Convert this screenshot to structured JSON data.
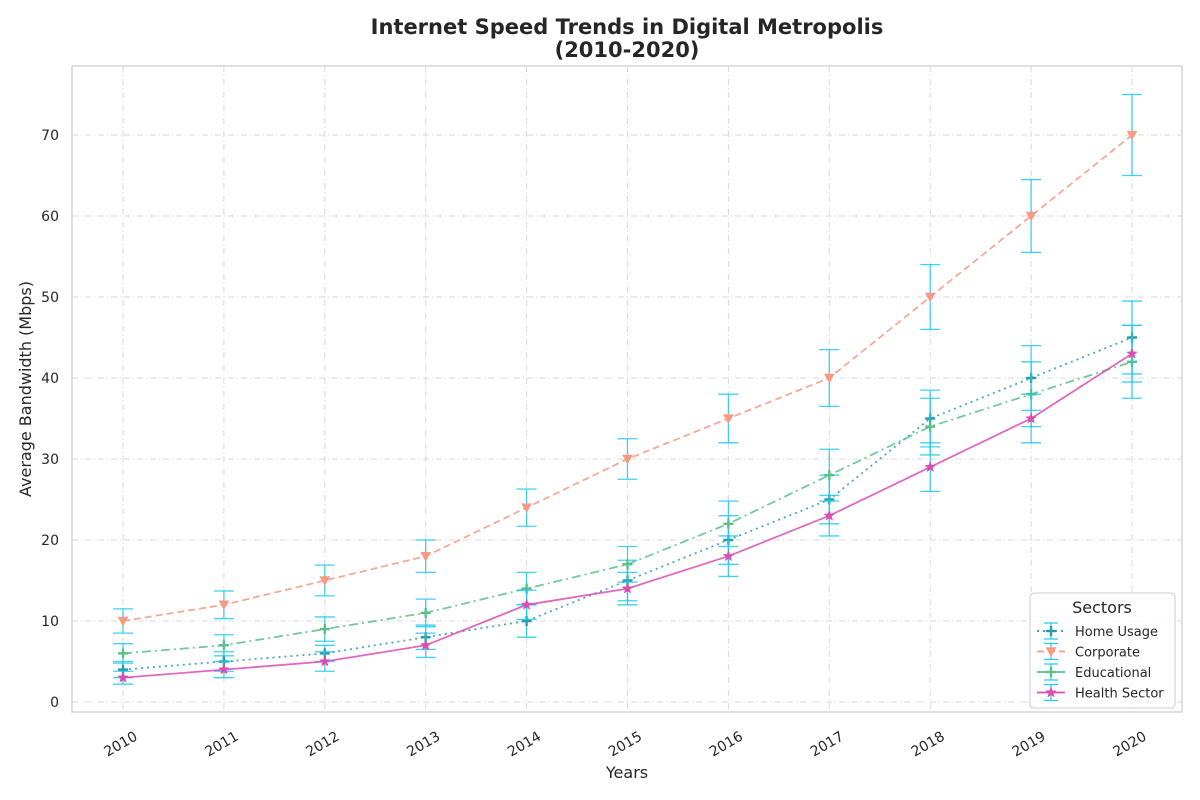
{
  "chart_data": {
    "type": "line",
    "title": "Internet Speed Trends in Digital Metropolis",
    "subtitle": "(2010-2020)",
    "xlabel": "Years",
    "ylabel": "Average Bandwidth (Mbps)",
    "categories": [
      "2010",
      "2011",
      "2012",
      "2013",
      "2014",
      "2015",
      "2016",
      "2017",
      "2018",
      "2019",
      "2020"
    ],
    "ylim": [
      -1.2,
      78.5
    ],
    "yticks": [
      0,
      10,
      20,
      30,
      40,
      50,
      60,
      70
    ],
    "grid": true,
    "legend": {
      "title": "Sectors",
      "position": "lower-right"
    },
    "error_bar_color": "#1ec8f0",
    "series": [
      {
        "name": "Home Usage",
        "color": "#2a9aa8",
        "line_style": "dotted",
        "marker": "plus",
        "values": [
          4,
          5,
          6,
          8,
          10,
          15,
          20,
          25,
          35,
          40,
          45
        ],
        "errors": [
          1.0,
          1.2,
          1.0,
          1.5,
          2.0,
          2.5,
          3.0,
          3.0,
          3.5,
          4.0,
          4.5
        ]
      },
      {
        "name": "Corporate",
        "color": "#f59a85",
        "line_style": "dashed",
        "marker": "triangle-down",
        "values": [
          10,
          12,
          15,
          18,
          24,
          30,
          35,
          40,
          50,
          60,
          70
        ],
        "errors": [
          1.5,
          1.7,
          1.9,
          2.0,
          2.3,
          2.5,
          3.0,
          3.5,
          4.0,
          4.5,
          5.0
        ]
      },
      {
        "name": "Educational",
        "color": "#58c08b",
        "line_style": "dashdot",
        "marker": "plus",
        "values": [
          6,
          7,
          9,
          11,
          14,
          17,
          22,
          28,
          34,
          38,
          42
        ],
        "errors": [
          1.2,
          1.3,
          1.5,
          1.7,
          2.0,
          2.2,
          2.8,
          3.2,
          3.5,
          4.0,
          4.5
        ]
      },
      {
        "name": "Health Sector",
        "color": "#d84fb3",
        "line_style": "solid",
        "marker": "star",
        "values": [
          3,
          4,
          5,
          7,
          12,
          14,
          18,
          23,
          29,
          35,
          43
        ],
        "errors": [
          0.8,
          1.0,
          1.2,
          1.5,
          1.8,
          2.0,
          2.5,
          2.5,
          3.0,
          3.0,
          3.5
        ]
      }
    ]
  }
}
